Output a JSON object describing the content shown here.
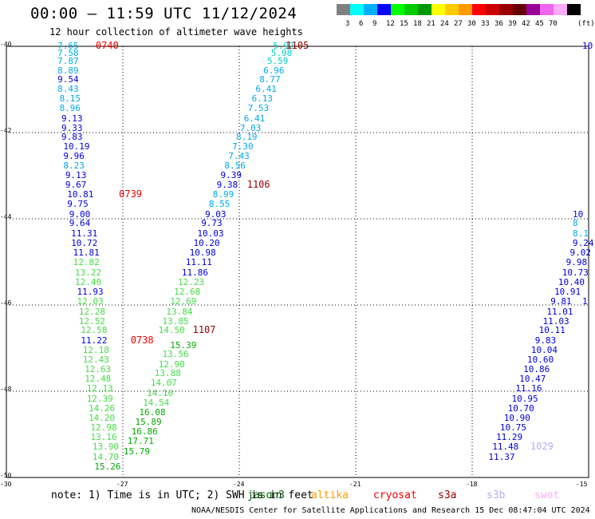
{
  "title": "00:00 – 11:59 UTC 11/12/2024",
  "subtitle": "12 hour collection of altimeter wave heights",
  "legend": {
    "unit": "(ft)",
    "colors": [
      "#808080",
      "#00ffff",
      "#00b0ff",
      "#0000ff",
      "#00ff00",
      "#00cc00",
      "#009900",
      "#ffff00",
      "#ffcc00",
      "#ff9900",
      "#ff0000",
      "#cc0000",
      "#990000",
      "#660000",
      "#990099",
      "#ee66ee",
      "#ffaaff",
      "#000000"
    ],
    "ticks": [
      "3",
      "6",
      "9",
      "12",
      "15",
      "18",
      "21",
      "24",
      "27",
      "30",
      "33",
      "36",
      "39",
      "42",
      "45",
      "70"
    ]
  },
  "axes": {
    "y_ticks": [
      "-40",
      "-42",
      "-44",
      "-46",
      "-48",
      "-50"
    ],
    "x_ticks": [
      "-30",
      "-27",
      "-24",
      "-21",
      "-18",
      "-15"
    ]
  },
  "tracks": [
    {
      "time": "0740",
      "time_label_lat": -40.0,
      "time_label_lon": -27.7,
      "points": [
        {
          "lon": -28.6,
          "lat": -40.0,
          "v": "7.65"
        },
        {
          "lon": -28.6,
          "lat": -40.17,
          "v": "7.58"
        },
        {
          "lon": -28.6,
          "lat": -40.36,
          "v": "7.87"
        },
        {
          "lon": -28.6,
          "lat": -40.57,
          "v": "8.89"
        },
        {
          "lon": -28.6,
          "lat": -40.78,
          "v": "9.54"
        },
        {
          "lon": -28.6,
          "lat": -41.0,
          "v": "8.43"
        },
        {
          "lon": -28.55,
          "lat": -41.22,
          "v": "8.15"
        },
        {
          "lon": -28.55,
          "lat": -41.45,
          "v": "8.96"
        },
        {
          "lon": -28.5,
          "lat": -41.68,
          "v": "9.13"
        },
        {
          "lon": -28.5,
          "lat": -41.9,
          "v": "9.33"
        },
        {
          "lon": -28.5,
          "lat": -42.12,
          "v": "9.83"
        },
        {
          "lon": -28.45,
          "lat": -42.34,
          "v": "10.19"
        },
        {
          "lon": -28.45,
          "lat": -42.55,
          "v": "9.96"
        },
        {
          "lon": -28.45,
          "lat": -42.77,
          "v": "8.23"
        },
        {
          "lon": -28.4,
          "lat": -43.0,
          "v": "9.13"
        },
        {
          "lon": -28.4,
          "lat": -43.22,
          "v": "9.67"
        },
        {
          "lon": -28.35,
          "lat": -43.45,
          "v": "10.81"
        },
        {
          "lon": -28.35,
          "lat": -43.67,
          "v": "9.75"
        },
        {
          "lon": -28.3,
          "lat": -43.9,
          "v": "9.00"
        },
        {
          "lon": -28.3,
          "lat": -44.12,
          "v": "9.64"
        },
        {
          "lon": -28.25,
          "lat": -44.35,
          "v": "11.31"
        },
        {
          "lon": -28.25,
          "lat": -44.57,
          "v": "10.72"
        },
        {
          "lon": -28.2,
          "lat": -44.8,
          "v": "11.81"
        },
        {
          "lon": -28.2,
          "lat": -45.02,
          "v": "12.82"
        },
        {
          "lon": -28.15,
          "lat": -45.25,
          "v": "13.22"
        },
        {
          "lon": -28.15,
          "lat": -45.48,
          "v": "12.40"
        },
        {
          "lon": -28.1,
          "lat": -45.7,
          "v": "11.93"
        },
        {
          "lon": -28.1,
          "lat": -45.93,
          "v": "12.03"
        },
        {
          "lon": -28.05,
          "lat": -46.16,
          "v": "12.28"
        },
        {
          "lon": -28.05,
          "lat": -46.38,
          "v": "12.52"
        },
        {
          "lon": -28.0,
          "lat": -46.6,
          "v": "12.58"
        },
        {
          "lon": -28.0,
          "lat": -46.83,
          "v": "11.22"
        },
        {
          "lon": -27.95,
          "lat": -47.05,
          "v": "12.18"
        },
        {
          "lon": -27.95,
          "lat": -47.28,
          "v": "12.43"
        },
        {
          "lon": -27.9,
          "lat": -47.5,
          "v": "12.63"
        },
        {
          "lon": -27.9,
          "lat": -47.73,
          "v": "12.48"
        },
        {
          "lon": -27.85,
          "lat": -47.95,
          "v": "12.13"
        },
        {
          "lon": -27.85,
          "lat": -48.18,
          "v": "12.39"
        },
        {
          "lon": -27.8,
          "lat": -48.4,
          "v": "14.26"
        },
        {
          "lon": -27.8,
          "lat": -48.63,
          "v": "14.20"
        },
        {
          "lon": -27.75,
          "lat": -48.85,
          "v": "12.98"
        },
        {
          "lon": -27.75,
          "lat": -49.08,
          "v": "13.16"
        },
        {
          "lon": -27.7,
          "lat": -49.3,
          "v": "13.90"
        },
        {
          "lon": -27.7,
          "lat": -49.53,
          "v": "14.70"
        },
        {
          "lon": -27.65,
          "lat": -49.76,
          "v": "15.26"
        }
      ]
    },
    {
      "time": "0739",
      "time_label_lat": -43.45,
      "time_label_lon": -27.1,
      "points": []
    },
    {
      "time": "0738",
      "time_label_lat": -46.83,
      "time_label_lon": -26.8,
      "points": [
        {
          "lon": -25.7,
          "lat": -46.95,
          "v": "15.39"
        },
        {
          "lon": -25.9,
          "lat": -47.15,
          "v": "13.56"
        },
        {
          "lon": -26.0,
          "lat": -47.38,
          "v": "12.90"
        },
        {
          "lon": -26.1,
          "lat": -47.6,
          "v": "13.88"
        },
        {
          "lon": -26.2,
          "lat": -47.82,
          "v": "14.07"
        },
        {
          "lon": -26.3,
          "lat": -48.05,
          "v": "14.10"
        },
        {
          "lon": -26.4,
          "lat": -48.27,
          "v": "14.54"
        },
        {
          "lon": -26.5,
          "lat": -48.5,
          "v": "16.08"
        },
        {
          "lon": -26.6,
          "lat": -48.72,
          "v": "15.89"
        },
        {
          "lon": -26.7,
          "lat": -48.95,
          "v": "16.86"
        },
        {
          "lon": -26.8,
          "lat": -49.17,
          "v": "17.71"
        },
        {
          "lon": -26.9,
          "lat": -49.4,
          "v": "15.79"
        }
      ]
    },
    {
      "time": "1105",
      "time_label_lat": -40.0,
      "time_label_lon": -22.8,
      "points": [
        {
          "lon": -23.05,
          "lat": -40.0,
          "v": "5.92"
        },
        {
          "lon": -23.1,
          "lat": -40.17,
          "v": "5.98"
        },
        {
          "lon": -23.2,
          "lat": -40.36,
          "v": "5.59"
        },
        {
          "lon": -23.3,
          "lat": -40.57,
          "v": "6.96"
        },
        {
          "lon": -23.4,
          "lat": -40.78,
          "v": "8.77"
        },
        {
          "lon": -23.5,
          "lat": -41.0,
          "v": "6.41"
        },
        {
          "lon": -23.6,
          "lat": -41.22,
          "v": "6.13"
        },
        {
          "lon": -23.7,
          "lat": -41.45,
          "v": "7.53"
        },
        {
          "lon": -23.8,
          "lat": -41.68,
          "v": "6.41"
        },
        {
          "lon": -23.9,
          "lat": -41.9,
          "v": "7.03"
        },
        {
          "lon": -24.0,
          "lat": -42.12,
          "v": "8.19"
        },
        {
          "lon": -24.1,
          "lat": -42.34,
          "v": "7.30"
        },
        {
          "lon": -24.2,
          "lat": -42.55,
          "v": "7.43"
        },
        {
          "lon": -24.3,
          "lat": -42.77,
          "v": "8.56"
        },
        {
          "lon": -24.4,
          "lat": -43.0,
          "v": "9.39"
        },
        {
          "lon": -24.5,
          "lat": -43.22,
          "v": "9.38"
        },
        {
          "lon": -24.6,
          "lat": -43.45,
          "v": "8.99"
        },
        {
          "lon": -24.7,
          "lat": -43.67,
          "v": "8.55"
        }
      ]
    },
    {
      "time": "1106",
      "time_label_lat": -43.22,
      "time_label_lon": -23.8,
      "points": [
        {
          "lon": -24.8,
          "lat": -43.9,
          "v": "9.03"
        },
        {
          "lon": -24.9,
          "lat": -44.12,
          "v": "9.73"
        },
        {
          "lon": -25.0,
          "lat": -44.35,
          "v": "10.03"
        },
        {
          "lon": -25.1,
          "lat": -44.57,
          "v": "10.20"
        },
        {
          "lon": -25.2,
          "lat": -44.8,
          "v": "10.98"
        },
        {
          "lon": -25.3,
          "lat": -45.02,
          "v": "11.11"
        },
        {
          "lon": -25.4,
          "lat": -45.25,
          "v": "11.86"
        },
        {
          "lon": -25.5,
          "lat": -45.48,
          "v": "12.23"
        },
        {
          "lon": -25.6,
          "lat": -45.7,
          "v": "12.68"
        },
        {
          "lon": -25.7,
          "lat": -45.93,
          "v": "12.69"
        },
        {
          "lon": -25.8,
          "lat": -46.16,
          "v": "13.84"
        },
        {
          "lon": -25.9,
          "lat": -46.38,
          "v": "13.85"
        },
        {
          "lon": -26.0,
          "lat": -46.6,
          "v": "14.50"
        }
      ]
    },
    {
      "time": "1107",
      "time_label_lat": -46.6,
      "time_label_lon": -25.2,
      "points": []
    },
    {
      "time": "1029",
      "time_label_lat": -49.3,
      "time_label_lon": -16.5,
      "points": [
        {
          "lon": -15.1,
          "lat": -43.9,
          "v": "10"
        },
        {
          "lon": -15.1,
          "lat": -44.12,
          "v": "8"
        },
        {
          "lon": -15.2,
          "lat": -44.35,
          "v": "8.1"
        },
        {
          "lon": -15.3,
          "lat": -44.57,
          "v": "9.24"
        },
        {
          "lon": -15.4,
          "lat": -44.8,
          "v": "9.02"
        },
        {
          "lon": -15.5,
          "lat": -45.02,
          "v": "9.98"
        },
        {
          "lon": -15.6,
          "lat": -45.25,
          "v": "10.73"
        },
        {
          "lon": -15.7,
          "lat": -45.48,
          "v": "10.40"
        },
        {
          "lon": -15.8,
          "lat": -45.7,
          "v": "10.91"
        },
        {
          "lon": -15.9,
          "lat": -45.93,
          "v": "9.81"
        },
        {
          "lon": -16.0,
          "lat": -46.16,
          "v": "11.01"
        },
        {
          "lon": -16.1,
          "lat": -46.38,
          "v": "11.03"
        },
        {
          "lon": -16.2,
          "lat": -46.6,
          "v": "10.11"
        },
        {
          "lon": -16.3,
          "lat": -46.83,
          "v": "9.83"
        },
        {
          "lon": -16.4,
          "lat": -47.05,
          "v": "10.04"
        },
        {
          "lon": -16.5,
          "lat": -47.28,
          "v": "10.60"
        },
        {
          "lon": -16.6,
          "lat": -47.5,
          "v": "10.86"
        },
        {
          "lon": -16.7,
          "lat": -47.73,
          "v": "10.47"
        },
        {
          "lon": -16.8,
          "lat": -47.95,
          "v": "11.16"
        },
        {
          "lon": -16.9,
          "lat": -48.18,
          "v": "10.95"
        },
        {
          "lon": -17.0,
          "lat": -48.4,
          "v": "10.70"
        },
        {
          "lon": -17.1,
          "lat": -48.63,
          "v": "10.90"
        },
        {
          "lon": -17.2,
          "lat": -48.85,
          "v": "10.75"
        },
        {
          "lon": -17.3,
          "lat": -49.08,
          "v": "11.29"
        },
        {
          "lon": -17.4,
          "lat": -49.3,
          "v": "11.48"
        },
        {
          "lon": -17.5,
          "lat": -49.53,
          "v": "11.37"
        }
      ]
    }
  ],
  "edge_labels": [
    {
      "lon": -15.0,
      "lat": -40.0,
      "v": "10"
    },
    {
      "lon": -15.0,
      "lat": -45.93,
      "v": "1"
    }
  ],
  "note": "note:  1) Time is in UTC; 2) SWH is in feet",
  "satellites": [
    {
      "name": "jason3",
      "color": "#006600",
      "left": 310
    },
    {
      "name": "altika",
      "color": "#ff9900",
      "left": 390
    },
    {
      "name": "cryosat",
      "color": "#ee0000",
      "left": 468
    },
    {
      "name": "s3a",
      "color": "#990000",
      "left": 549
    },
    {
      "name": "s3b",
      "color": "#bbaaee",
      "left": 610
    },
    {
      "name": "swot",
      "color": "#ffaaff",
      "left": 670
    }
  ],
  "credit": "NOAA/NESDIS Center for Satellite Applications and Research    15 Dec 08:47:04 UTC 2024"
}
